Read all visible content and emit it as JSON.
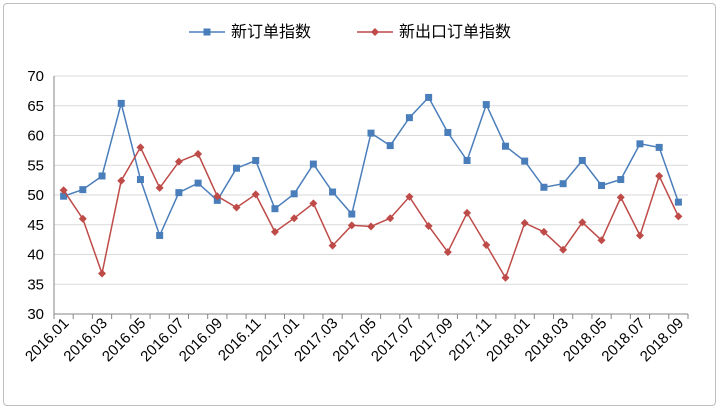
{
  "chart_data": {
    "type": "line",
    "title": "",
    "xlabel": "",
    "ylabel": "",
    "ylim": [
      30,
      70
    ],
    "y_ticks": [
      "70",
      "65",
      "60",
      "55",
      "50",
      "45",
      "40",
      "35",
      "30"
    ],
    "x": [
      "2016.01",
      "2016.02",
      "2016.03",
      "2016.04",
      "2016.05",
      "2016.06",
      "2016.07",
      "2016.08",
      "2016.09",
      "2016.10",
      "2016.11",
      "2016.12",
      "2017.01",
      "2017.02",
      "2017.03",
      "2017.04",
      "2017.05",
      "2017.06",
      "2017.07",
      "2017.08",
      "2017.09",
      "2017.10",
      "2017.11",
      "2017.12",
      "2018.01",
      "2018.02",
      "2018.03",
      "2018.04",
      "2018.05",
      "2018.06",
      "2018.07",
      "2018.08",
      "2018.09"
    ],
    "x_tick_labels": [
      "2016.01",
      "2016.03",
      "2016.05",
      "2016.07",
      "2016.09",
      "2016.11",
      "2017.01",
      "2017.03",
      "2017.05",
      "2017.07",
      "2017.09",
      "2017.11",
      "2018.01",
      "2018.03",
      "2018.05",
      "2018.07",
      "2018.09"
    ],
    "grid": "horizontal",
    "legend_position": "top",
    "series": [
      {
        "name": "新订单指数",
        "color": "#4a7ebb",
        "marker": "square",
        "values": [
          49.8,
          50.9,
          53.2,
          65.4,
          52.6,
          43.2,
          50.4,
          52.0,
          49.1,
          54.5,
          55.8,
          47.7,
          50.2,
          55.2,
          50.5,
          46.8,
          60.4,
          58.3,
          63.0,
          66.4,
          60.5,
          55.8,
          65.2,
          58.2,
          55.7,
          51.3,
          51.9,
          55.8,
          51.6,
          52.6,
          58.6,
          58.0,
          48.8
        ]
      },
      {
        "name": "新出口订单指数",
        "color": "#be4b48",
        "marker": "diamond",
        "values": [
          50.8,
          46.0,
          36.8,
          52.4,
          58.0,
          51.2,
          55.6,
          56.9,
          49.8,
          47.9,
          50.1,
          43.8,
          46.1,
          48.6,
          41.5,
          44.9,
          44.7,
          46.1,
          49.7,
          44.8,
          40.4,
          47.0,
          41.6,
          36.1,
          45.3,
          43.8,
          40.8,
          45.4,
          42.4,
          49.6,
          43.2,
          53.2,
          46.4
        ]
      }
    ]
  }
}
